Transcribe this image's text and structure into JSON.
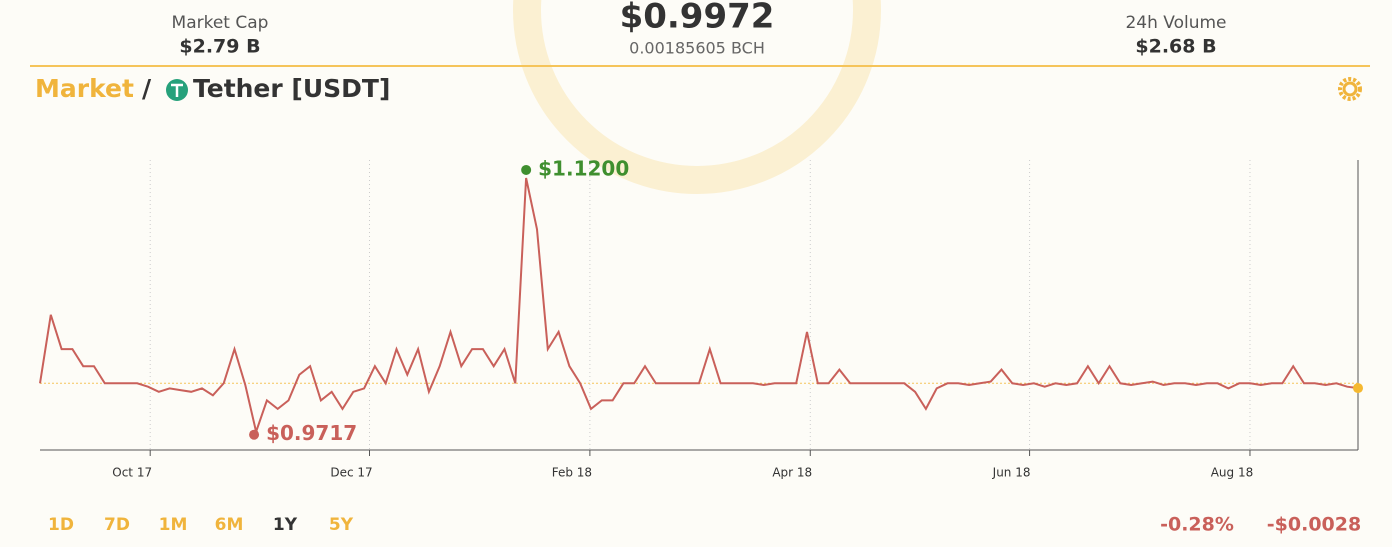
{
  "header": {
    "market_cap_label": "Market Cap",
    "market_cap": "$2.79 B",
    "price": "$0.9972",
    "price_bch": "0.00185605 BCH",
    "volume_label": "24h Volume",
    "volume": "$2.68 B"
  },
  "breadcrumb": {
    "root": "Market",
    "separator": "/",
    "coin": "Tether [USDT]"
  },
  "chart_data": {
    "type": "line",
    "color": "#c9605a",
    "values": [
      1.0,
      1.04,
      1.02,
      1.02,
      1.01,
      1.01,
      1.0,
      1.0,
      1.0,
      1.0,
      0.998,
      0.995,
      0.997,
      0.996,
      0.995,
      0.997,
      0.993,
      1.0,
      1.02,
      0.999,
      0.9717,
      0.99,
      0.985,
      0.99,
      1.005,
      1.01,
      0.99,
      0.995,
      0.985,
      0.995,
      0.997,
      1.01,
      1.0,
      1.02,
      1.005,
      1.02,
      0.995,
      1.01,
      1.03,
      1.01,
      1.02,
      1.02,
      1.01,
      1.02,
      1.0,
      1.12,
      1.09,
      1.02,
      1.03,
      1.01,
      1.0,
      0.985,
      0.99,
      0.99,
      1.0,
      1.0,
      1.01,
      1.0,
      1.0,
      1.0,
      1.0,
      1.0,
      1.02,
      1.0,
      1.0,
      1.0,
      1.0,
      0.999,
      1.0,
      1.0,
      1.0,
      1.03,
      1.0,
      1.0,
      1.008,
      1.0,
      1.0,
      1.0,
      1.0,
      1.0,
      1.0,
      0.995,
      0.985,
      0.997,
      1.0,
      1.0,
      0.999,
      1.0,
      1.001,
      1.008,
      1.0,
      0.999,
      1.0,
      0.998,
      1.0,
      0.999,
      1.0,
      1.01,
      1.0,
      1.01,
      1.0,
      0.999,
      1.0,
      1.001,
      0.999,
      1.0,
      1.0,
      0.999,
      1.0,
      1.0,
      0.997,
      1.0,
      1.0,
      0.999,
      1.0,
      1.0,
      1.01,
      1.0,
      1.0,
      0.999,
      1.0,
      0.998,
      0.9972
    ],
    "max_label": "$1.1200",
    "min_label": "$0.9717",
    "max_color": "#3f8f2f",
    "last_color": "#f5b830",
    "reference": 1.0,
    "xlim": [
      0,
      122
    ],
    "ylim": [
      0.961,
      1.1305
    ],
    "xticks": [
      {
        "value": 10.2,
        "label": "Oct 17"
      },
      {
        "value": 30.5,
        "label": "Dec 17"
      },
      {
        "value": 50.9,
        "label": "Feb 18"
      },
      {
        "value": 71.3,
        "label": "Apr 18"
      },
      {
        "value": 91.6,
        "label": "Jun 18"
      },
      {
        "value": 112,
        "label": "Aug 18"
      }
    ],
    "grid": true
  },
  "controls": {
    "ranges": [
      "1D",
      "7D",
      "1M",
      "6M",
      "1Y",
      "5Y"
    ],
    "active": "1Y",
    "change_pct": "-0.28%",
    "change_abs": "-$0.0028"
  }
}
